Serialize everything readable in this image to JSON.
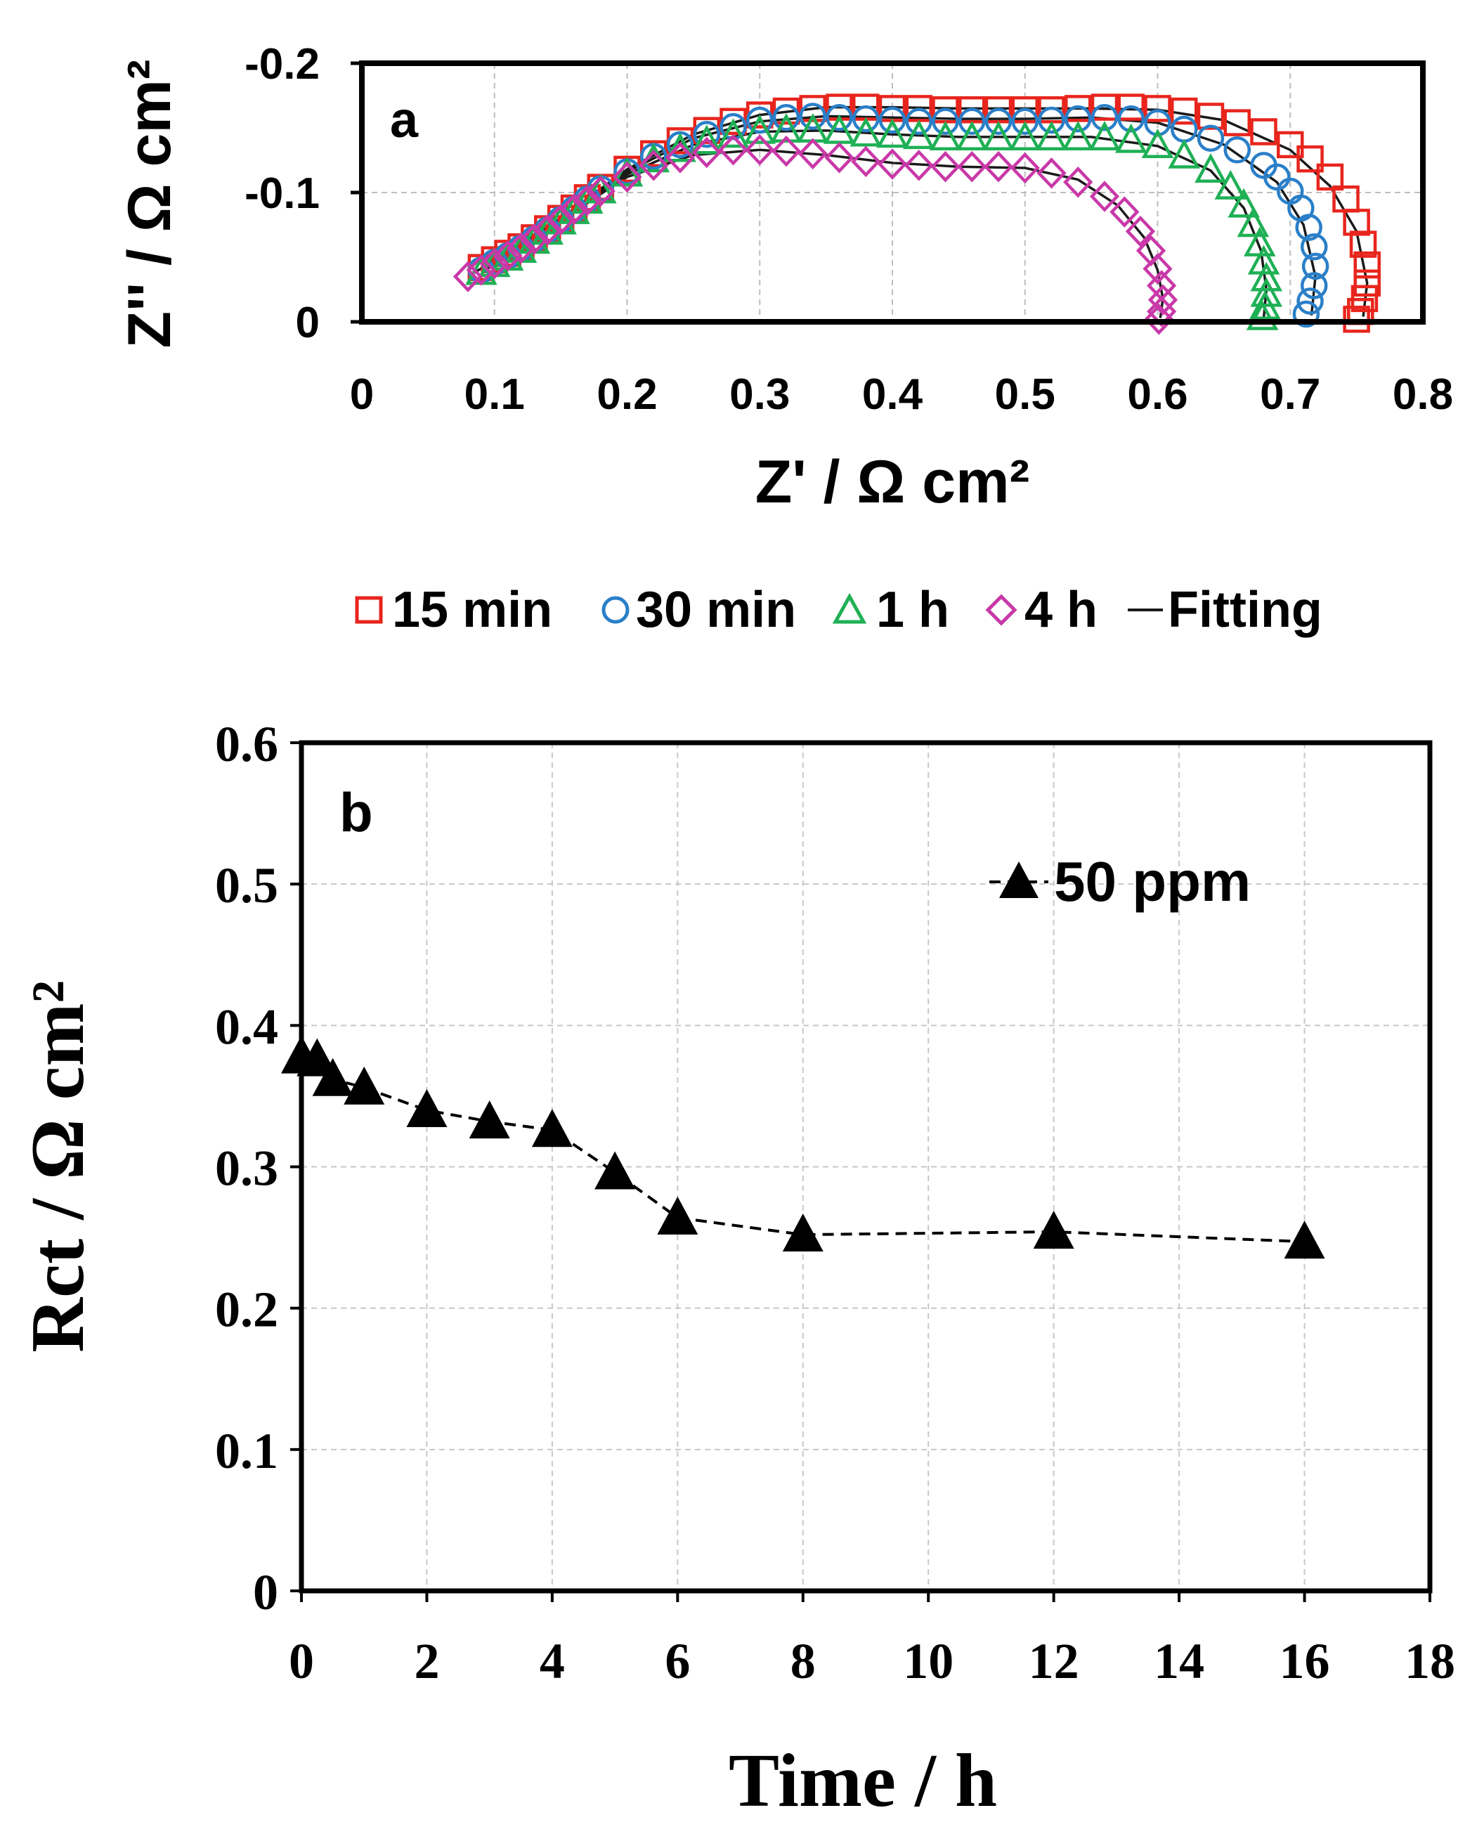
{
  "chart_data": [
    {
      "id": "panel-a",
      "type": "scatter",
      "panel_label": "a",
      "xlabel": "Z' / Ω cm²",
      "ylabel": "Z'' / Ω cm²",
      "xlim": [
        0,
        0.8
      ],
      "ylim": [
        0,
        -0.2
      ],
      "x_ticks": [
        0,
        0.1,
        0.2,
        0.3,
        0.4,
        0.5,
        0.6,
        0.7,
        0.8
      ],
      "x_tick_labels": [
        "0",
        "0.1",
        "0.2",
        "0.3",
        "0.4",
        "0.5",
        "0.6",
        "0.7",
        "0.8"
      ],
      "y_ticks": [
        0,
        -0.1,
        -0.2
      ],
      "y_tick_labels": [
        "0",
        "-0.1",
        "-0.2"
      ],
      "grid": true,
      "legend": {
        "placement": "below",
        "entries": [
          "15 min",
          "30 min",
          "1 h",
          "4 h",
          "Fitting"
        ],
        "markers": [
          "square",
          "circle",
          "triangle",
          "diamond",
          "line"
        ],
        "colors": [
          "#e8251d",
          "#2a7fc8",
          "#1fb055",
          "#c938a8",
          "#1a1a1a"
        ]
      },
      "series": [
        {
          "name": "15 min",
          "marker": "square",
          "color": "#e8251d",
          "x": [
            0.09,
            0.1,
            0.11,
            0.12,
            0.13,
            0.14,
            0.15,
            0.16,
            0.17,
            0.18,
            0.2,
            0.22,
            0.24,
            0.26,
            0.28,
            0.3,
            0.32,
            0.34,
            0.36,
            0.38,
            0.4,
            0.42,
            0.44,
            0.46,
            0.48,
            0.5,
            0.52,
            0.54,
            0.56,
            0.58,
            0.6,
            0.62,
            0.64,
            0.66,
            0.68,
            0.7,
            0.715,
            0.73,
            0.742,
            0.75,
            0.755,
            0.758,
            0.758,
            0.756,
            0.753,
            0.75
          ],
          "y": [
            -0.042,
            -0.048,
            -0.053,
            -0.058,
            -0.065,
            -0.072,
            -0.08,
            -0.088,
            -0.096,
            -0.104,
            -0.118,
            -0.13,
            -0.14,
            -0.148,
            -0.155,
            -0.16,
            -0.163,
            -0.165,
            -0.166,
            -0.166,
            -0.165,
            -0.165,
            -0.164,
            -0.164,
            -0.164,
            -0.164,
            -0.164,
            -0.165,
            -0.166,
            -0.166,
            -0.165,
            -0.163,
            -0.159,
            -0.154,
            -0.147,
            -0.137,
            -0.126,
            -0.112,
            -0.095,
            -0.077,
            -0.06,
            -0.044,
            -0.03,
            -0.018,
            -0.008,
            -0.002
          ]
        },
        {
          "name": "30 min",
          "marker": "circle",
          "color": "#2a7fc8",
          "x": [
            0.09,
            0.1,
            0.11,
            0.12,
            0.13,
            0.14,
            0.15,
            0.16,
            0.17,
            0.18,
            0.2,
            0.22,
            0.24,
            0.26,
            0.28,
            0.3,
            0.32,
            0.34,
            0.36,
            0.38,
            0.4,
            0.42,
            0.44,
            0.46,
            0.48,
            0.5,
            0.52,
            0.54,
            0.56,
            0.58,
            0.6,
            0.62,
            0.64,
            0.66,
            0.68,
            0.69,
            0.7,
            0.708,
            0.714,
            0.718,
            0.719,
            0.718,
            0.715,
            0.712
          ],
          "y": [
            -0.04,
            -0.046,
            -0.051,
            -0.057,
            -0.064,
            -0.071,
            -0.079,
            -0.087,
            -0.095,
            -0.103,
            -0.116,
            -0.128,
            -0.137,
            -0.145,
            -0.151,
            -0.156,
            -0.158,
            -0.159,
            -0.158,
            -0.157,
            -0.156,
            -0.155,
            -0.155,
            -0.155,
            -0.155,
            -0.155,
            -0.156,
            -0.157,
            -0.158,
            -0.157,
            -0.154,
            -0.149,
            -0.142,
            -0.133,
            -0.121,
            -0.112,
            -0.101,
            -0.088,
            -0.073,
            -0.058,
            -0.043,
            -0.028,
            -0.016,
            -0.006
          ]
        },
        {
          "name": "1 h",
          "marker": "triangle",
          "color": "#1fb055",
          "x": [
            0.09,
            0.1,
            0.11,
            0.12,
            0.13,
            0.14,
            0.15,
            0.16,
            0.17,
            0.18,
            0.2,
            0.22,
            0.24,
            0.26,
            0.28,
            0.3,
            0.32,
            0.34,
            0.36,
            0.38,
            0.4,
            0.42,
            0.44,
            0.46,
            0.48,
            0.5,
            0.52,
            0.54,
            0.56,
            0.58,
            0.6,
            0.62,
            0.64,
            0.655,
            0.665,
            0.672,
            0.677,
            0.68,
            0.682,
            0.682,
            0.681,
            0.679
          ],
          "y": [
            -0.038,
            -0.044,
            -0.049,
            -0.055,
            -0.062,
            -0.069,
            -0.077,
            -0.085,
            -0.093,
            -0.101,
            -0.114,
            -0.125,
            -0.133,
            -0.139,
            -0.144,
            -0.147,
            -0.148,
            -0.148,
            -0.147,
            -0.145,
            -0.144,
            -0.143,
            -0.142,
            -0.142,
            -0.142,
            -0.142,
            -0.142,
            -0.142,
            -0.142,
            -0.14,
            -0.136,
            -0.128,
            -0.117,
            -0.104,
            -0.09,
            -0.075,
            -0.06,
            -0.046,
            -0.033,
            -0.021,
            -0.011,
            -0.003
          ]
        },
        {
          "name": "4 h",
          "marker": "diamond",
          "color": "#c938a8",
          "x": [
            0.08,
            0.09,
            0.1,
            0.11,
            0.12,
            0.13,
            0.14,
            0.15,
            0.16,
            0.17,
            0.18,
            0.2,
            0.22,
            0.24,
            0.26,
            0.28,
            0.3,
            0.32,
            0.34,
            0.36,
            0.38,
            0.4,
            0.42,
            0.44,
            0.46,
            0.48,
            0.5,
            0.52,
            0.54,
            0.56,
            0.575,
            0.587,
            0.595,
            0.6,
            0.603,
            0.604,
            0.603,
            0.601
          ],
          "y": [
            -0.035,
            -0.04,
            -0.045,
            -0.051,
            -0.057,
            -0.064,
            -0.071,
            -0.079,
            -0.087,
            -0.094,
            -0.101,
            -0.112,
            -0.121,
            -0.127,
            -0.131,
            -0.133,
            -0.133,
            -0.132,
            -0.13,
            -0.127,
            -0.124,
            -0.122,
            -0.121,
            -0.12,
            -0.12,
            -0.12,
            -0.119,
            -0.115,
            -0.108,
            -0.097,
            -0.085,
            -0.07,
            -0.055,
            -0.041,
            -0.028,
            -0.017,
            -0.008,
            -0.002
          ]
        },
        {
          "name": "Fitting (15 min)",
          "marker": "line",
          "color": "#1a1a1a",
          "x": [
            0.09,
            0.15,
            0.2,
            0.25,
            0.3,
            0.35,
            0.4,
            0.45,
            0.5,
            0.55,
            0.6,
            0.65,
            0.7,
            0.73,
            0.75,
            0.758,
            0.755
          ],
          "y": [
            -0.042,
            -0.08,
            -0.118,
            -0.145,
            -0.16,
            -0.166,
            -0.166,
            -0.165,
            -0.165,
            -0.165,
            -0.164,
            -0.156,
            -0.133,
            -0.105,
            -0.07,
            -0.03,
            -0.004
          ]
        },
        {
          "name": "Fitting (30 min)",
          "marker": "line",
          "color": "#1a1a1a",
          "x": [
            0.09,
            0.15,
            0.2,
            0.25,
            0.3,
            0.35,
            0.4,
            0.45,
            0.5,
            0.55,
            0.6,
            0.65,
            0.69,
            0.71,
            0.719,
            0.716
          ],
          "y": [
            -0.04,
            -0.079,
            -0.116,
            -0.142,
            -0.155,
            -0.159,
            -0.158,
            -0.157,
            -0.157,
            -0.158,
            -0.154,
            -0.137,
            -0.108,
            -0.075,
            -0.035,
            -0.005
          ]
        },
        {
          "name": "Fitting (1 h)",
          "marker": "line",
          "color": "#1a1a1a",
          "x": [
            0.09,
            0.15,
            0.2,
            0.25,
            0.3,
            0.35,
            0.4,
            0.45,
            0.5,
            0.55,
            0.6,
            0.64,
            0.665,
            0.678,
            0.682,
            0.68
          ],
          "y": [
            -0.038,
            -0.077,
            -0.114,
            -0.137,
            -0.147,
            -0.148,
            -0.145,
            -0.143,
            -0.143,
            -0.143,
            -0.136,
            -0.117,
            -0.088,
            -0.055,
            -0.025,
            -0.003
          ]
        },
        {
          "name": "Fitting (4 h)",
          "marker": "line",
          "color": "#1a1a1a",
          "x": [
            0.08,
            0.15,
            0.2,
            0.25,
            0.3,
            0.35,
            0.4,
            0.45,
            0.5,
            0.54,
            0.57,
            0.59,
            0.6,
            0.604,
            0.602
          ],
          "y": [
            -0.035,
            -0.079,
            -0.112,
            -0.129,
            -0.133,
            -0.129,
            -0.123,
            -0.12,
            -0.119,
            -0.11,
            -0.09,
            -0.065,
            -0.04,
            -0.018,
            -0.003
          ]
        }
      ]
    },
    {
      "id": "panel-b",
      "type": "line",
      "panel_label": "b",
      "xlabel": "Time / h",
      "ylabel": "Rct / Ω cm²",
      "xlim": [
        0,
        18
      ],
      "ylim": [
        0,
        0.6
      ],
      "x_ticks": [
        0,
        2,
        4,
        6,
        8,
        10,
        12,
        14,
        16,
        18
      ],
      "x_tick_labels": [
        "0",
        "2",
        "4",
        "6",
        "8",
        "10",
        "12",
        "14",
        "16",
        "18"
      ],
      "y_ticks": [
        0,
        0.1,
        0.2,
        0.3,
        0.4,
        0.5,
        0.6
      ],
      "y_tick_labels": [
        "0",
        "0.1",
        "0.2",
        "0.3",
        "0.4",
        "0.5",
        "0.6"
      ],
      "grid": true,
      "legend": {
        "placement": "top-right",
        "entries": [
          "50 ppm"
        ]
      },
      "series": [
        {
          "name": "50 ppm",
          "marker": "filled-triangle",
          "line_style": "dashed",
          "color": "#000000",
          "x": [
            0,
            0.25,
            0.5,
            1,
            2,
            3,
            4,
            5,
            6,
            8,
            12,
            16
          ],
          "y": [
            0.378,
            0.376,
            0.362,
            0.356,
            0.34,
            0.332,
            0.326,
            0.296,
            0.264,
            0.252,
            0.254,
            0.247
          ]
        }
      ]
    }
  ]
}
